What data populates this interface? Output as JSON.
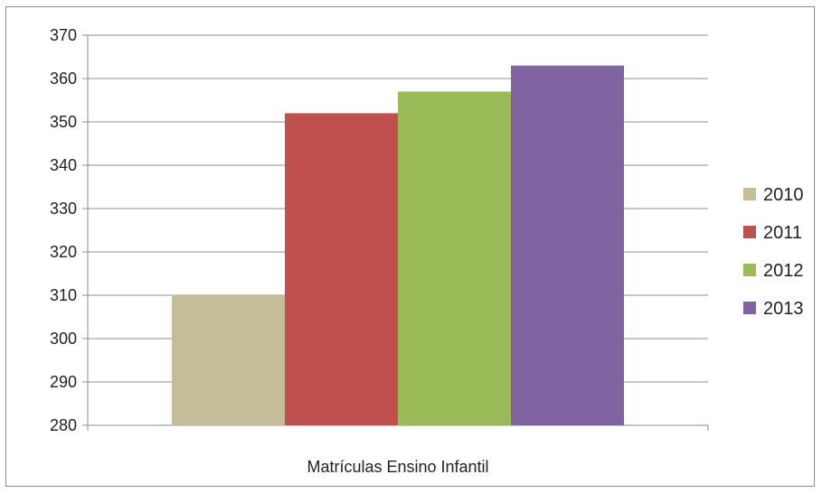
{
  "chart_data": {
    "type": "bar",
    "categories": [
      "Matrículas Ensino Infantil"
    ],
    "series": [
      {
        "name": "2010",
        "values": [
          310
        ],
        "color": "#c4bd97"
      },
      {
        "name": "2011",
        "values": [
          352
        ],
        "color": "#c0504d"
      },
      {
        "name": "2012",
        "values": [
          357
        ],
        "color": "#9bbb59"
      },
      {
        "name": "2013",
        "values": [
          363
        ],
        "color": "#8064a2"
      }
    ],
    "yticks": [
      "280",
      "290",
      "300",
      "310",
      "320",
      "330",
      "340",
      "350",
      "360",
      "370"
    ],
    "ylim": [
      280,
      370
    ],
    "grid": true,
    "legend": "right",
    "xlabel": "",
    "ylabel": "",
    "title": ""
  }
}
